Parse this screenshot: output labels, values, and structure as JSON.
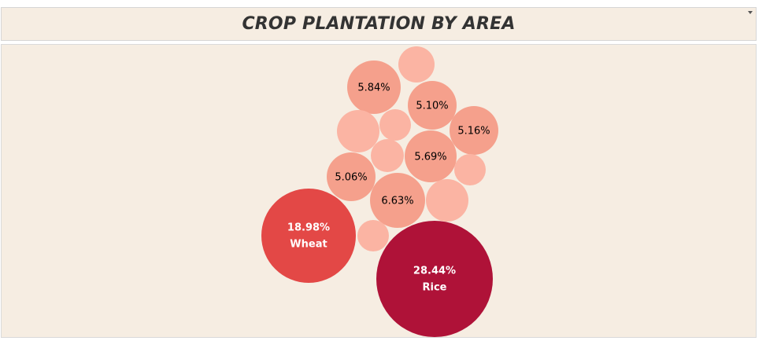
{
  "title": "CROP PLANTATION BY AREA",
  "colors": {
    "panel_bg": "#f6ede2",
    "light": "#fbb4a3",
    "medium": "#f5a08c",
    "wheat": "#e34846",
    "rice": "#af1238",
    "dark_text": "#000000",
    "light_text": "#ffffff"
  },
  "chart_data": {
    "type": "bubble",
    "title": "CROP PLANTATION BY AREA",
    "unit": "% of total area",
    "bubbles": [
      {
        "label": "28.44%",
        "name": "Rice",
        "value": 28.44,
        "color": "#af1238"
      },
      {
        "label": "18.98%",
        "name": "Wheat",
        "value": 18.98,
        "color": "#e34846"
      },
      {
        "label": "6.63%",
        "name": "",
        "value": 6.63,
        "color": "#f5a08c"
      },
      {
        "label": "5.84%",
        "name": "",
        "value": 5.84,
        "color": "#f5a08c"
      },
      {
        "label": "5.69%",
        "name": "",
        "value": 5.69,
        "color": "#f5a08c"
      },
      {
        "label": "5.16%",
        "name": "",
        "value": 5.16,
        "color": "#f5a08c"
      },
      {
        "label": "5.10%",
        "name": "",
        "value": 5.1,
        "color": "#f5a08c"
      },
      {
        "label": "5.06%",
        "name": "",
        "value": 5.06,
        "color": "#f5a08c"
      },
      {
        "label": "",
        "name": "",
        "value": 4.3,
        "color": "#fbb4a3"
      },
      {
        "label": "",
        "name": "",
        "value": 4.2,
        "color": "#fbb4a3"
      },
      {
        "label": "",
        "name": "",
        "value": 2.2,
        "color": "#fbb4a3"
      },
      {
        "label": "",
        "name": "",
        "value": 2.1,
        "color": "#fbb4a3"
      },
      {
        "label": "",
        "name": "",
        "value": 2.0,
        "color": "#fbb4a3"
      },
      {
        "label": "",
        "name": "",
        "value": 2.0,
        "color": "#fbb4a3"
      },
      {
        "label": "",
        "name": "",
        "value": 1.9,
        "color": "#fbb4a3"
      }
    ]
  }
}
